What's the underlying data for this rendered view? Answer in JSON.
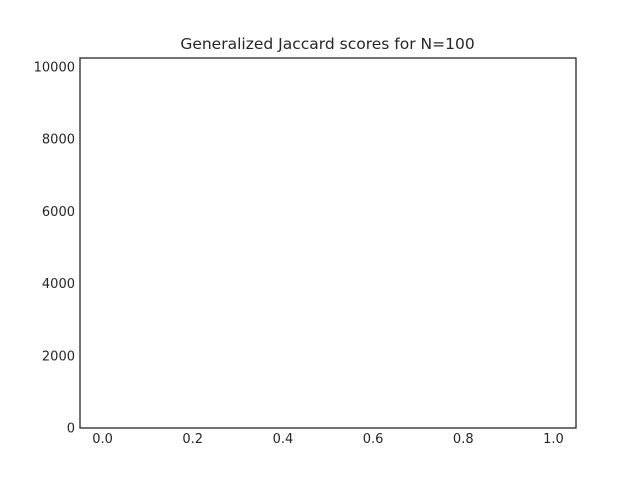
{
  "chart_data": {
    "type": "bar",
    "title": "Generalized Jaccard scores for N=100",
    "xlabel": "",
    "ylabel": "",
    "xlim": [
      -0.05,
      1.05
    ],
    "ylim": [
      0,
      10250
    ],
    "x_ticks": [
      0.0,
      0.2,
      0.4,
      0.6,
      0.8,
      1.0
    ],
    "x_tick_labels": [
      "0.0",
      "0.2",
      "0.4",
      "0.6",
      "0.8",
      "1.0"
    ],
    "y_ticks": [
      0,
      2000,
      4000,
      6000,
      8000,
      10000
    ],
    "y_tick_labels": [
      "0",
      "2000",
      "4000",
      "6000",
      "8000",
      "10000"
    ],
    "grid": false,
    "legend": "none",
    "series": [],
    "colors": {
      "axis": "#262626",
      "text": "#262626",
      "background": "#ffffff"
    }
  }
}
